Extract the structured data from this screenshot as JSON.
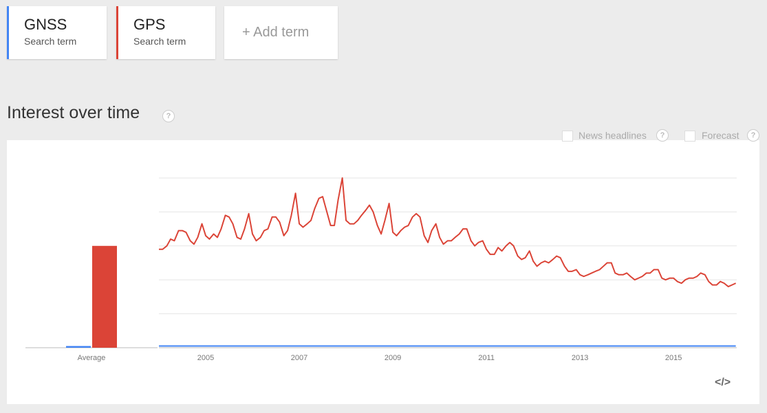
{
  "term_label": "Search term",
  "add_term": "+ Add term",
  "section_title": "Interest over time",
  "help_icon": "?",
  "options": [
    "News headlines",
    "Forecast"
  ],
  "embed_icon": "</>",
  "chart_data": {
    "type": "line",
    "average_label": "Average",
    "x": [
      2004,
      2004.08,
      2004.17,
      2004.25,
      2004.33,
      2004.42,
      2004.5,
      2004.58,
      2004.67,
      2004.75,
      2004.83,
      2004.92,
      2005,
      2005.08,
      2005.17,
      2005.25,
      2005.33,
      2005.42,
      2005.5,
      2005.58,
      2005.67,
      2005.75,
      2005.83,
      2005.92,
      2006,
      2006.08,
      2006.17,
      2006.25,
      2006.33,
      2006.42,
      2006.5,
      2006.58,
      2006.67,
      2006.75,
      2006.83,
      2006.92,
      2007,
      2007.08,
      2007.17,
      2007.25,
      2007.33,
      2007.42,
      2007.5,
      2007.58,
      2007.67,
      2007.75,
      2007.83,
      2007.92,
      2008,
      2008.08,
      2008.17,
      2008.25,
      2008.33,
      2008.42,
      2008.5,
      2008.58,
      2008.67,
      2008.75,
      2008.83,
      2008.92,
      2009,
      2009.08,
      2009.17,
      2009.25,
      2009.33,
      2009.42,
      2009.5,
      2009.58,
      2009.67,
      2009.75,
      2009.83,
      2009.92,
      2010,
      2010.08,
      2010.17,
      2010.25,
      2010.33,
      2010.42,
      2010.5,
      2010.58,
      2010.67,
      2010.75,
      2010.83,
      2010.92,
      2011,
      2011.08,
      2011.17,
      2011.25,
      2011.33,
      2011.42,
      2011.5,
      2011.58,
      2011.67,
      2011.75,
      2011.83,
      2011.92,
      2012,
      2012.08,
      2012.17,
      2012.25,
      2012.33,
      2012.42,
      2012.5,
      2012.58,
      2012.67,
      2012.75,
      2012.83,
      2012.92,
      2013,
      2013.08,
      2013.17,
      2013.25,
      2013.33,
      2013.42,
      2013.5,
      2013.58,
      2013.67,
      2013.75,
      2013.83,
      2013.92,
      2014,
      2014.08,
      2014.17,
      2014.25,
      2014.33,
      2014.42,
      2014.5,
      2014.58,
      2014.67,
      2014.75,
      2014.83,
      2014.92,
      2015,
      2015.08,
      2015.17,
      2015.25,
      2015.33,
      2015.42,
      2015.5,
      2015.58,
      2015.67,
      2015.75,
      2015.83,
      2015.92,
      2016,
      2016.08,
      2016.17,
      2016.25,
      2016.33
    ],
    "series": [
      {
        "name": "GNSS",
        "color": "#4285f4",
        "average": 1,
        "values": [
          1,
          1,
          1,
          1,
          1,
          1,
          1,
          1,
          1,
          1,
          1,
          1,
          1,
          1,
          1,
          1,
          1,
          1,
          1,
          1,
          1,
          1,
          1,
          1,
          1,
          1,
          1,
          1,
          1,
          1,
          1,
          1,
          1,
          1,
          1,
          1,
          1,
          1,
          1,
          1,
          1,
          1,
          1,
          1,
          1,
          1,
          1,
          1,
          1,
          1,
          1,
          1,
          1,
          1,
          1,
          1,
          1,
          1,
          1,
          1,
          1,
          1,
          1,
          1,
          1,
          1,
          1,
          1,
          1,
          1,
          1,
          1,
          1,
          1,
          1,
          1,
          1,
          1,
          1,
          1,
          1,
          1,
          1,
          1,
          1,
          1,
          1,
          1,
          1,
          1,
          1,
          1,
          1,
          1,
          1,
          1,
          1,
          1,
          1,
          1,
          1,
          1,
          1,
          1,
          1,
          1,
          1,
          1,
          1,
          1,
          1,
          1,
          1,
          1,
          1,
          1,
          1,
          1,
          1,
          1,
          1,
          1,
          1,
          1,
          1,
          1,
          1,
          1,
          1,
          1,
          1,
          1,
          1,
          1,
          1,
          1,
          1,
          1,
          1,
          1,
          1,
          1,
          1,
          1,
          1,
          1,
          1,
          1,
          1
        ]
      },
      {
        "name": "GPS",
        "color": "#db4437",
        "average": 60,
        "values": [
          58,
          58,
          60,
          64,
          63,
          69,
          69,
          68,
          63,
          61,
          65,
          73,
          66,
          64,
          67,
          65,
          70,
          78,
          77,
          73,
          65,
          64,
          70,
          79,
          67,
          63,
          65,
          69,
          70,
          77,
          77,
          74,
          66,
          69,
          78,
          91,
          73,
          71,
          73,
          75,
          82,
          88,
          89,
          81,
          72,
          72,
          87,
          100,
          75,
          73,
          73,
          75,
          78,
          81,
          84,
          80,
          72,
          67,
          75,
          85,
          68,
          66,
          69,
          71,
          72,
          77,
          79,
          77,
          66,
          62,
          69,
          73,
          65,
          61,
          63,
          63,
          65,
          67,
          70,
          70,
          63,
          60,
          62,
          63,
          58,
          55,
          55,
          59,
          57,
          60,
          62,
          60,
          54,
          52,
          53,
          57,
          51,
          48,
          50,
          51,
          50,
          52,
          54,
          53,
          48,
          45,
          45,
          46,
          43,
          42,
          43,
          44,
          45,
          46,
          48,
          50,
          50,
          44,
          43,
          43,
          44,
          42,
          40,
          41,
          42,
          44,
          44,
          46,
          46,
          41,
          40,
          41,
          41,
          39,
          38,
          40,
          41,
          41,
          42,
          44,
          43,
          39,
          37,
          37,
          39,
          38,
          36,
          37,
          38
        ]
      }
    ],
    "xlim": [
      2004,
      2016.35
    ],
    "xticks": [
      2005,
      2007,
      2009,
      2011,
      2013,
      2015
    ],
    "ylim": [
      0,
      100
    ],
    "yticks": [
      0,
      20,
      40,
      60,
      80,
      100
    ],
    "y_tick_labels": false,
    "grid": true
  }
}
